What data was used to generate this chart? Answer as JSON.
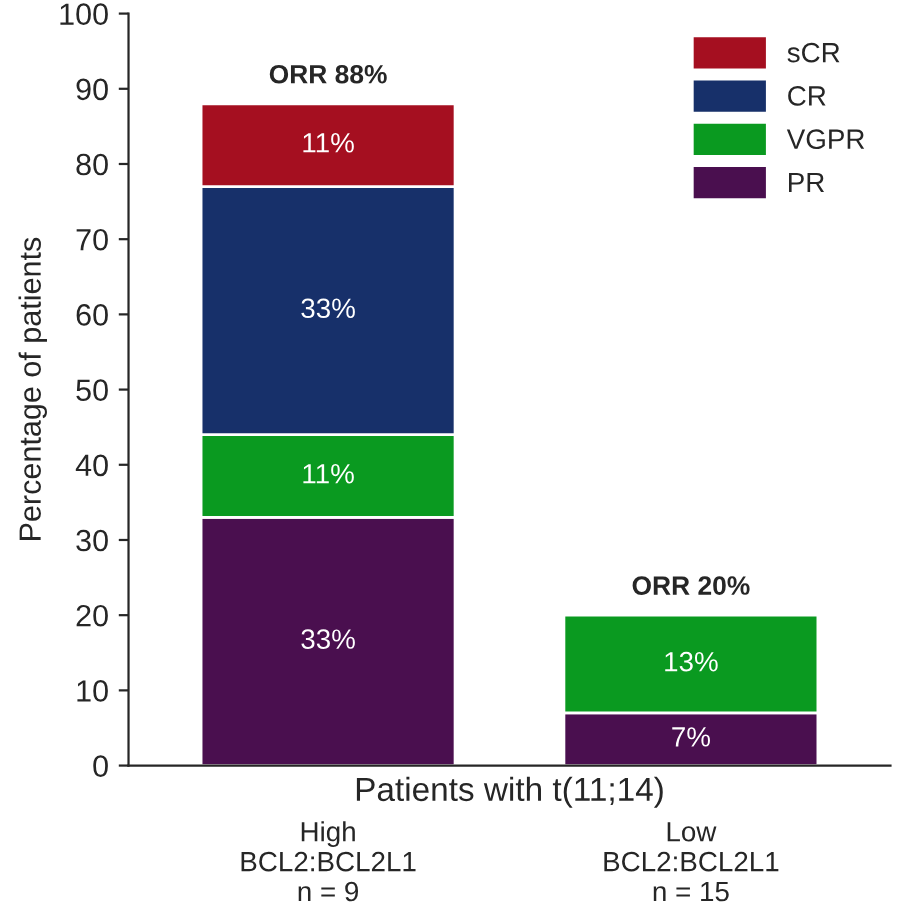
{
  "chart_data": {
    "type": "bar",
    "stacked": true,
    "categories": [
      "High\nBCL2:BCL2L1\nn = 9",
      "Low\nBCL2:BCL2L1\nn = 15"
    ],
    "series": [
      {
        "name": "PR",
        "color": "#4a0f4f",
        "values": [
          33,
          7
        ],
        "value_labels": [
          "33%",
          "7%"
        ]
      },
      {
        "name": "VGPR",
        "color": "#0a9a20",
        "values": [
          11,
          13
        ],
        "value_labels": [
          "11%",
          "13%"
        ]
      },
      {
        "name": "CR",
        "color": "#17306a",
        "values": [
          33,
          null
        ],
        "value_labels": [
          "33%",
          null
        ]
      },
      {
        "name": "sCR",
        "color": "#a50f20",
        "values": [
          11,
          null
        ],
        "value_labels": [
          "11%",
          null
        ]
      }
    ],
    "totals": [
      "ORR 88%",
      "ORR 20%"
    ],
    "xlabel": "Patients with t(11;14)",
    "ylabel": "Percentage of patients",
    "ylim": [
      0,
      100
    ],
    "yticks": [
      0,
      10,
      20,
      30,
      40,
      50,
      60,
      70,
      80,
      90,
      100
    ],
    "legend": "top right",
    "grid": false
  }
}
